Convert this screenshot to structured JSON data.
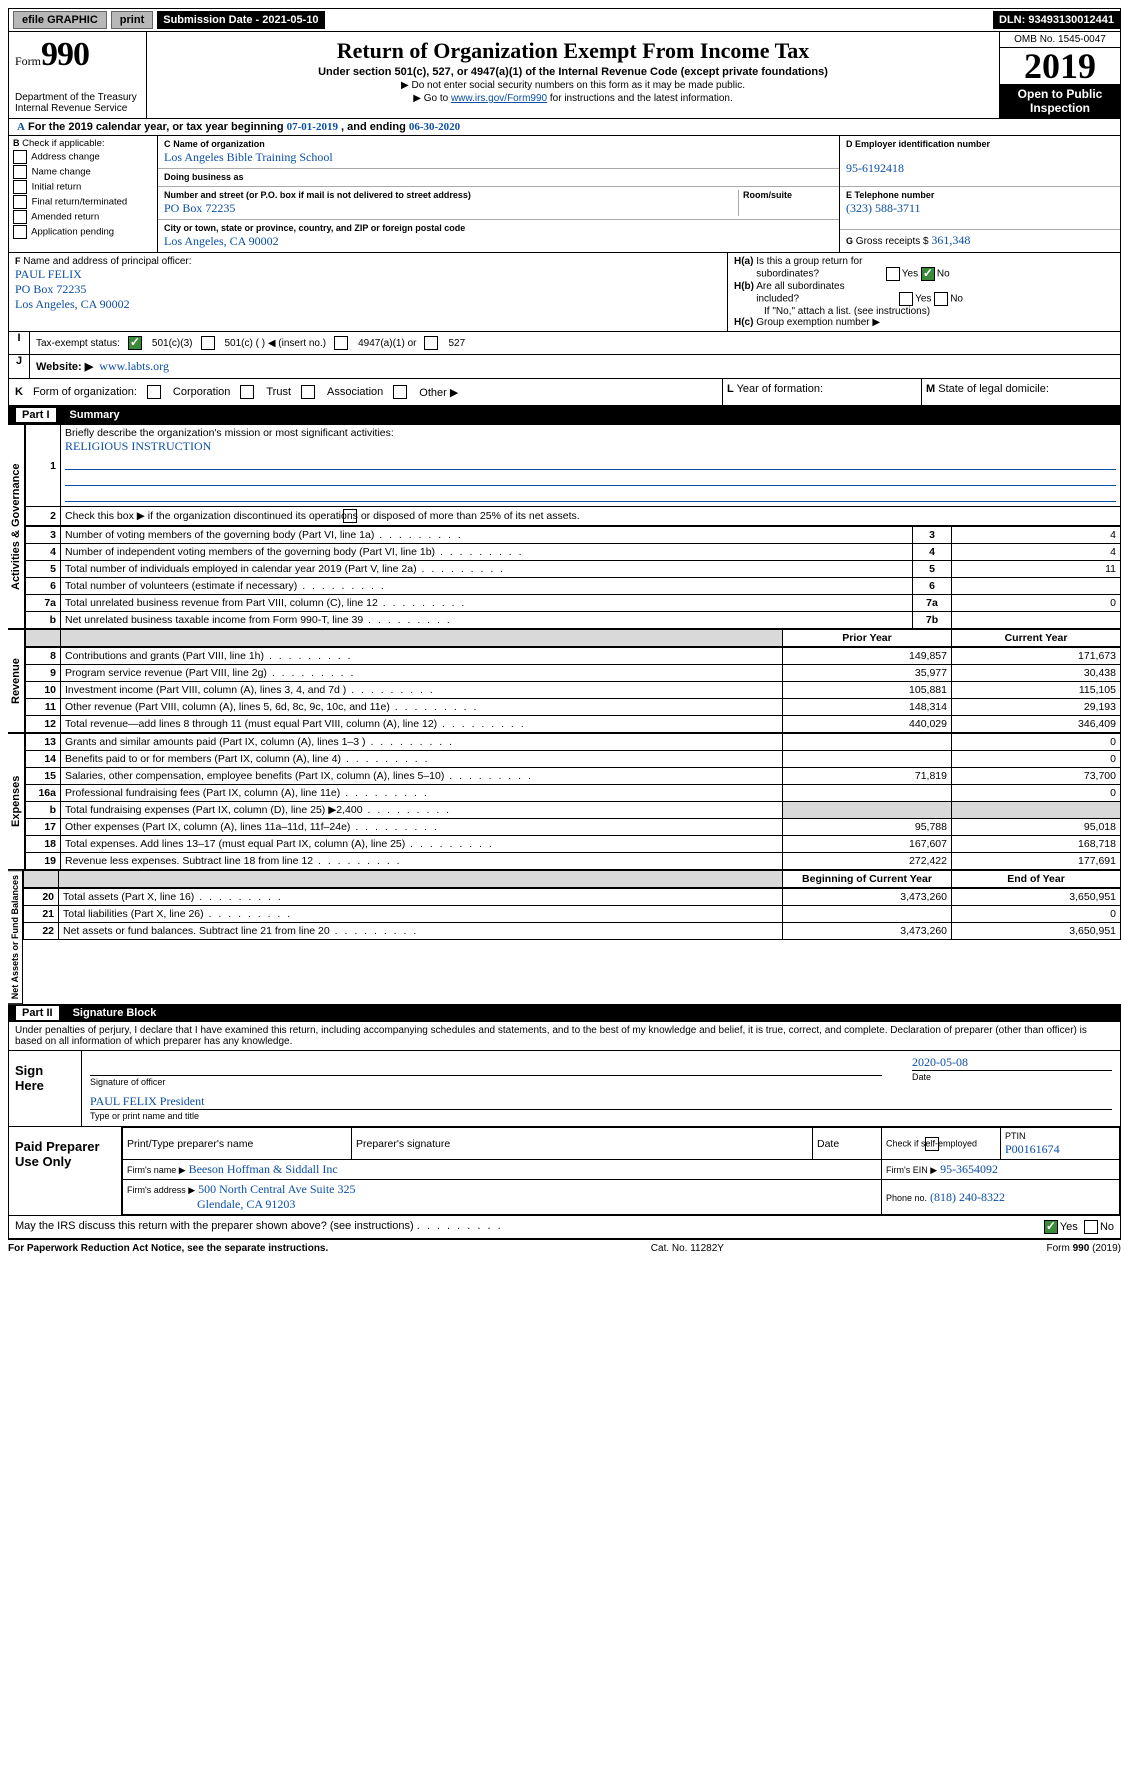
{
  "topbar": {
    "efile": "efile GRAPHIC",
    "print": "print",
    "subdate_label": "Submission Date - ",
    "subdate": "2021-05-10",
    "dln_label": "DLN: ",
    "dln": "93493130012441"
  },
  "hdr": {
    "form_word": "Form",
    "form_num": "990",
    "dept1": "Department of the Treasury",
    "dept2": "Internal Revenue Service",
    "title": "Return of Organization Exempt From Income Tax",
    "subtitle": "Under section 501(c), 527, or 4947(a)(1) of the Internal Revenue Code (except private foundations)",
    "note1": "▶ Do not enter social security numbers on this form as it may be made public.",
    "note2_pre": "▶ Go to ",
    "note2_link": "www.irs.gov/Form990",
    "note2_post": " for instructions and the latest information.",
    "omb": "OMB No. 1545-0047",
    "year": "2019",
    "inspect1": "Open to Public",
    "inspect2": "Inspection"
  },
  "period": {
    "a": "A",
    "text1": "For the 2019 calendar year, or tax year beginning ",
    "d1": "07-01-2019",
    "text2": " , and ending ",
    "d2": "06-30-2020"
  },
  "boxB": {
    "hdr": "B",
    "label": "Check if applicable:",
    "addr": "Address change",
    "name": "Name change",
    "init": "Initial return",
    "final": "Final return/terminated",
    "amend": "Amended return",
    "app": "Application pending"
  },
  "boxC": {
    "lblC": "C",
    "lblName": "Name of organization",
    "orgname": "Los Angeles Bible Training School",
    "dba": "Doing business as",
    "street_lbl": "Number and street (or P.O. box if mail is not delivered to street address)",
    "room": "Room/suite",
    "street": "PO Box 72235",
    "city_lbl": "City or town, state or province, country, and ZIP or foreign postal code",
    "city": "Los Angeles, CA  90002"
  },
  "boxD": {
    "lbl": "D Employer identification number",
    "ein": "95-6192418"
  },
  "boxE": {
    "lbl": "E Telephone number",
    "tel": "(323) 588-3711"
  },
  "boxG": {
    "lbl": "G",
    "txt": "Gross receipts $",
    "val": "361,348"
  },
  "boxF": {
    "lblF": "F",
    "lbl": " Name and address of principal officer:",
    "n": "PAUL FELIX",
    "a1": "PO Box 72235",
    "a2": "Los Angeles, CA  90002"
  },
  "boxH": {
    "a": "H(a)",
    "a_txt": " Is this a group return for",
    "a_txt2": "subordinates?",
    "a_yes": "Yes",
    "a_no": "No",
    "b": "H(b)",
    "b_txt": " Are all subordinates",
    "b_txt2": "included?",
    "b_yes": "Yes",
    "b_no": "No",
    "b_note": "If \"No,\" attach a list. (see instructions)",
    "c": "H(c)",
    "c_txt": " Group exemption number ▶"
  },
  "taxstatus": {
    "i": "I",
    "lbl": "Tax-exempt status:",
    "c1": "501(c)(3)",
    "c2": "501(c) (  ) ◀ (insert no.)",
    "c3": "4947(a)(1) or",
    "c4": "527"
  },
  "j": {
    "lbl": "J",
    "w": "Website: ▶",
    "url": "www.labts.org"
  },
  "k": {
    "lbl": "K",
    "txt": "Form of organization:",
    "c1": "Corporation",
    "c2": "Trust",
    "c3": "Association",
    "c4": "Other ▶"
  },
  "l": {
    "lbl": "L",
    "txt": "Year of formation:"
  },
  "m": {
    "lbl": "M",
    "txt": "State of legal domicile:"
  },
  "parts": {
    "p1": "Part I",
    "p1t": "Summary",
    "p2": "Part II",
    "p2t": "Signature Block"
  },
  "p1": {
    "q1": "Briefly describe the organization's mission or most significant activities:",
    "mission": "RELIGIOUS INSTRUCTION",
    "q2": "Check this box ▶       if the organization discontinued its operations or disposed of more than 25% of its net assets.",
    "rows": [
      {
        "n": "3",
        "d": "Number of voting members of the governing body (Part VI, line 1a)",
        "c": "3",
        "v": "4"
      },
      {
        "n": "4",
        "d": "Number of independent voting members of the governing body (Part VI, line 1b)",
        "c": "4",
        "v": "4"
      },
      {
        "n": "5",
        "d": "Total number of individuals employed in calendar year 2019 (Part V, line 2a)",
        "c": "5",
        "v": "11"
      },
      {
        "n": "6",
        "d": "Total number of volunteers (estimate if necessary)",
        "c": "6",
        "v": ""
      },
      {
        "n": "7a",
        "d": "Total unrelated business revenue from Part VIII, column (C), line 12",
        "c": "7a",
        "v": "0"
      },
      {
        "n": "b",
        "d": "Net unrelated business taxable income from Form 990-T, line 39",
        "c": "7b",
        "v": ""
      }
    ],
    "hdr_prior": "Prior Year",
    "hdr_curr": "Current Year",
    "rev": [
      {
        "n": "8",
        "d": "Contributions and grants (Part VIII, line 1h)",
        "p": "149,857",
        "c": "171,673"
      },
      {
        "n": "9",
        "d": "Program service revenue (Part VIII, line 2g)",
        "p": "35,977",
        "c": "30,438"
      },
      {
        "n": "10",
        "d": "Investment income (Part VIII, column (A), lines 3, 4, and 7d )",
        "p": "105,881",
        "c": "115,105"
      },
      {
        "n": "11",
        "d": "Other revenue (Part VIII, column (A), lines 5, 6d, 8c, 9c, 10c, and 11e)",
        "p": "148,314",
        "c": "29,193"
      },
      {
        "n": "12",
        "d": "Total revenue—add lines 8 through 11 (must equal Part VIII, column (A), line 12)",
        "p": "440,029",
        "c": "346,409"
      }
    ],
    "exp": [
      {
        "n": "13",
        "d": "Grants and similar amounts paid (Part IX, column (A), lines 1–3 )",
        "p": "",
        "c": "0"
      },
      {
        "n": "14",
        "d": "Benefits paid to or for members (Part IX, column (A), line 4)",
        "p": "",
        "c": "0"
      },
      {
        "n": "15",
        "d": "Salaries, other compensation, employee benefits (Part IX, column (A), lines 5–10)",
        "p": "71,819",
        "c": "73,700"
      },
      {
        "n": "16a",
        "d": "Professional fundraising fees (Part IX, column (A), line 11e)",
        "p": "",
        "c": "0"
      },
      {
        "n": "b",
        "d": "Total fundraising expenses (Part IX, column (D), line 25) ▶2,400",
        "p": "GRAY",
        "c": "GRAY"
      },
      {
        "n": "17",
        "d": "Other expenses (Part IX, column (A), lines 11a–11d, 11f–24e)",
        "p": "95,788",
        "c": "95,018"
      },
      {
        "n": "18",
        "d": "Total expenses. Add lines 13–17 (must equal Part IX, column (A), line 25)",
        "p": "167,607",
        "c": "168,718"
      },
      {
        "n": "19",
        "d": "Revenue less expenses. Subtract line 18 from line 12",
        "p": "272,422",
        "c": "177,691"
      }
    ],
    "hdr_boy": "Beginning of Current Year",
    "hdr_eoy": "End of Year",
    "net": [
      {
        "n": "20",
        "d": "Total assets (Part X, line 16)",
        "p": "3,473,260",
        "c": "3,650,951"
      },
      {
        "n": "21",
        "d": "Total liabilities (Part X, line 26)",
        "p": "",
        "c": "0"
      },
      {
        "n": "22",
        "d": "Net assets or fund balances. Subtract line 21 from line 20",
        "p": "3,473,260",
        "c": "3,650,951"
      }
    ],
    "side1": "Activities & Governance",
    "side2": "Revenue",
    "side3": "Expenses",
    "side4": "Net Assets or Fund Balances"
  },
  "sig": {
    "perjury": "Under penalties of perjury, I declare that I have examined this return, including accompanying schedules and statements, and to the best of my knowledge and belief, it is true, correct, and complete. Declaration of preparer (other than officer) is based on all information of which preparer has any knowledge.",
    "sign": "Sign Here",
    "sigoff": "Signature of officer",
    "date_lbl": "Date",
    "date": "2020-05-08",
    "name": "PAUL FELIX  President",
    "typed": "Type or print name and title",
    "paid": "Paid Preparer Use Only",
    "pt": "Print/Type preparer's name",
    "ps": "Preparer's signature",
    "pd": "Date",
    "pchk": "Check        if self-employed",
    "ptin_lbl": "PTIN",
    "ptin": "P00161674",
    "firm_lbl": "Firm's name    ▶",
    "firm": "Beeson Hoffman & Siddall Inc",
    "fein_lbl": "Firm's EIN ▶",
    "fein": "95-3654092",
    "addr_lbl": "Firm's address ▶",
    "addr1": "500 North Central Ave Suite 325",
    "addr2": "Glendale, CA  91203",
    "phone_lbl": "Phone no.",
    "phone": "(818) 240-8322",
    "discuss": "May the IRS discuss this return with the preparer shown above? (see instructions)",
    "yes": "Yes",
    "no": "No"
  },
  "footer": {
    "l": "For Paperwork Reduction Act Notice, see the separate instructions.",
    "c": "Cat. No. 11282Y",
    "r": "Form 990 (2019)"
  }
}
